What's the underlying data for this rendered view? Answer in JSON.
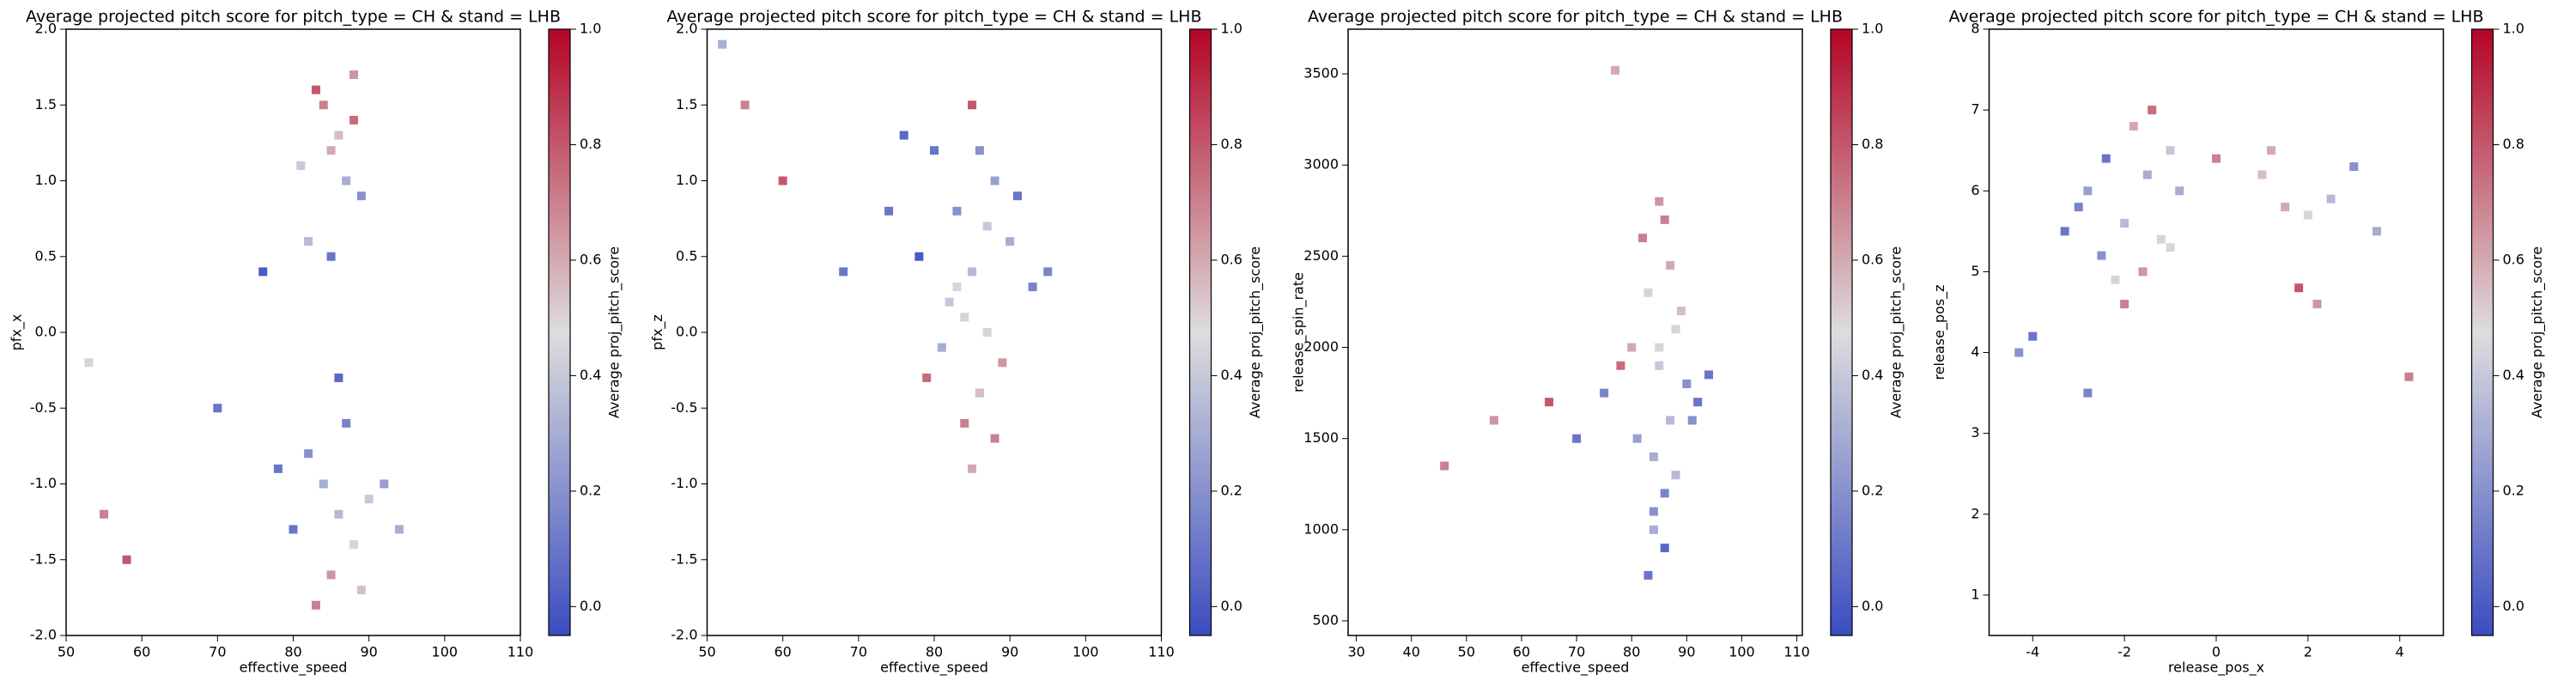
{
  "chart_data": [
    {
      "type": "scatter",
      "title": "Average projected pitch score for pitch_type = CH & stand = LHB",
      "x_label": "effective_speed",
      "y_label": "pfx_x",
      "colorbar_label": "Average proj_pitch_score",
      "xlim": [
        50,
        110
      ],
      "xticks": [
        50,
        60,
        70,
        80,
        90,
        100,
        110
      ],
      "ylim": [
        -2,
        2
      ],
      "yticks": [
        {
          "value": -2,
          "label": "-2.0"
        },
        {
          "value": -1.5,
          "label": "-1.5"
        },
        {
          "value": -1,
          "label": "-1.0"
        },
        {
          "value": -0.5,
          "label": "-0.5"
        },
        {
          "value": 0,
          "label": "0.0"
        },
        {
          "value": 0.5,
          "label": "0.5"
        },
        {
          "value": 1,
          "label": "1.0"
        },
        {
          "value": 1.5,
          "label": "1.5"
        },
        {
          "value": 2,
          "label": "2.0"
        }
      ],
      "clim": [
        -0.05,
        1
      ],
      "cticks": [
        {
          "value": 0,
          "label": "0.0"
        },
        {
          "value": 0.2,
          "label": "0.2"
        },
        {
          "value": 0.4,
          "label": "0.4"
        },
        {
          "value": 0.6,
          "label": "0.6"
        },
        {
          "value": 0.8,
          "label": "0.8"
        },
        {
          "value": 1,
          "label": "1.0"
        }
      ],
      "cmap_colors": [
        "#3b4cc0",
        "#dddddd",
        "#b40426"
      ],
      "x": [
        86,
        84,
        88,
        82,
        90,
        85,
        87,
        80,
        92,
        83,
        89,
        86,
        78,
        94,
        85,
        88,
        81,
        84,
        87,
        86,
        83,
        89,
        85,
        88,
        82,
        55,
        53,
        58,
        70,
        76
      ],
      "y": [
        -1.2,
        -1.0,
        -1.4,
        -0.8,
        -1.1,
        -1.6,
        -0.6,
        -1.3,
        -1.0,
        -1.8,
        -1.7,
        -0.3,
        -0.9,
        -1.3,
        1.2,
        1.4,
        1.1,
        1.5,
        1.0,
        1.3,
        1.6,
        0.9,
        0.5,
        1.7,
        0.6,
        -1.2,
        -0.2,
        -1.5,
        -0.5,
        0.4
      ],
      "c": [
        0.35,
        0.3,
        0.45,
        0.2,
        0.4,
        0.65,
        0.15,
        0.1,
        0.25,
        0.7,
        0.55,
        0.05,
        0.1,
        0.3,
        0.6,
        0.75,
        0.4,
        0.7,
        0.3,
        0.55,
        0.8,
        0.2,
        0.1,
        0.65,
        0.35,
        0.7,
        0.5,
        0.8,
        0.1,
        0.0
      ]
    },
    {
      "type": "scatter",
      "title": "Average projected pitch score for pitch_type = CH & stand = LHB",
      "x_label": "effective_speed",
      "y_label": "pfx_z",
      "colorbar_label": "Average proj_pitch_score",
      "xlim": [
        50,
        110
      ],
      "xticks": [
        50,
        60,
        70,
        80,
        90,
        100,
        110
      ],
      "ylim": [
        -2,
        2
      ],
      "yticks": [
        {
          "value": -2,
          "label": "-2.0"
        },
        {
          "value": -1.5,
          "label": "-1.5"
        },
        {
          "value": -1,
          "label": "-1.0"
        },
        {
          "value": -0.5,
          "label": "-0.5"
        },
        {
          "value": 0,
          "label": "0.0"
        },
        {
          "value": 0.5,
          "label": "0.5"
        },
        {
          "value": 1,
          "label": "1.0"
        },
        {
          "value": 1.5,
          "label": "1.5"
        },
        {
          "value": 2,
          "label": "2.0"
        }
      ],
      "clim": [
        -0.05,
        1
      ],
      "cticks": [
        {
          "value": 0,
          "label": "0.0"
        },
        {
          "value": 0.2,
          "label": "0.2"
        },
        {
          "value": 0.4,
          "label": "0.4"
        },
        {
          "value": 0.6,
          "label": "0.6"
        },
        {
          "value": 0.8,
          "label": "0.8"
        },
        {
          "value": 1,
          "label": "1.0"
        }
      ],
      "cmap_colors": [
        "#3b4cc0",
        "#dddddd",
        "#b40426"
      ],
      "x": [
        85,
        83,
        87,
        80,
        90,
        86,
        82,
        88,
        78,
        93,
        84,
        89,
        76,
        85,
        81,
        87,
        91,
        84,
        79,
        86,
        83,
        88,
        74,
        95,
        85,
        52,
        55,
        60,
        68,
        86
      ],
      "y": [
        0.4,
        0.8,
        0.0,
        1.2,
        0.6,
        -0.4,
        0.2,
        1.0,
        0.5,
        0.3,
        -0.6,
        -0.2,
        1.3,
        1.5,
        -0.1,
        0.7,
        0.9,
        0.1,
        -0.3,
        1.2,
        0.3,
        -0.7,
        0.8,
        0.4,
        -0.9,
        1.9,
        1.5,
        1.0,
        0.4,
        -0.4
      ],
      "c": [
        0.35,
        0.2,
        0.45,
        0.1,
        0.3,
        0.6,
        0.4,
        0.25,
        0.0,
        0.15,
        0.7,
        0.65,
        0.05,
        0.8,
        0.3,
        0.4,
        0.1,
        0.5,
        0.75,
        0.2,
        0.45,
        0.7,
        0.1,
        0.15,
        0.6,
        0.3,
        0.7,
        0.8,
        0.1,
        0.55
      ]
    },
    {
      "type": "scatter",
      "title": "Average projected pitch score for pitch_type = CH & stand = LHB",
      "x_label": "effective_speed",
      "y_label": "release_spin_rate",
      "colorbar_label": "Average proj_pitch_score",
      "xlim": [
        28.5,
        111
      ],
      "xticks": [
        30,
        40,
        50,
        60,
        70,
        80,
        90,
        100,
        110
      ],
      "ylim": [
        420,
        3745
      ],
      "yticks": [
        500,
        1000,
        1500,
        2000,
        2500,
        3000,
        3500
      ],
      "clim": [
        -0.05,
        1
      ],
      "cticks": [
        {
          "value": 0,
          "label": "0.0"
        },
        {
          "value": 0.2,
          "label": "0.2"
        },
        {
          "value": 0.4,
          "label": "0.4"
        },
        {
          "value": 0.6,
          "label": "0.6"
        },
        {
          "value": 0.8,
          "label": "0.8"
        },
        {
          "value": 1,
          "label": "1.0"
        }
      ],
      "cmap_colors": [
        "#3b4cc0",
        "#dddddd",
        "#b40426"
      ],
      "x": [
        85,
        83,
        87,
        80,
        90,
        86,
        82,
        88,
        84,
        92,
        85,
        81,
        89,
        86,
        78,
        84,
        87,
        83,
        91,
        85,
        88,
        86,
        75,
        94,
        84,
        46,
        55,
        65,
        70,
        77
      ],
      "y": [
        1900,
        2300,
        1600,
        2000,
        1800,
        1200,
        2600,
        2100,
        1400,
        1700,
        2800,
        1500,
        2200,
        900,
        1900,
        1000,
        2450,
        750,
        1600,
        2000,
        1300,
        2700,
        1750,
        1850,
        1100,
        1350,
        1600,
        1700,
        1500,
        3520
      ],
      "c": [
        0.4,
        0.5,
        0.35,
        0.6,
        0.2,
        0.15,
        0.7,
        0.45,
        0.3,
        0.1,
        0.65,
        0.25,
        0.55,
        0.05,
        0.75,
        0.3,
        0.6,
        0.1,
        0.2,
        0.45,
        0.35,
        0.7,
        0.15,
        0.1,
        0.2,
        0.7,
        0.65,
        0.8,
        0.1,
        0.6
      ]
    },
    {
      "type": "scatter",
      "title": "Average projected pitch score for pitch_type = CH & stand = LHB",
      "x_label": "release_pos_x",
      "y_label": "release_pos_z",
      "colorbar_label": "Average proj_pitch_score",
      "xlim": [
        -4.95,
        4.95
      ],
      "xticks": [
        -4,
        -2,
        0,
        2,
        4
      ],
      "ylim": [
        0.5,
        8
      ],
      "yticks": [
        1,
        2,
        3,
        4,
        5,
        6,
        7,
        8
      ],
      "clim": [
        -0.05,
        1
      ],
      "cticks": [
        {
          "value": 0,
          "label": "0.0"
        },
        {
          "value": 0.2,
          "label": "0.2"
        },
        {
          "value": 0.4,
          "label": "0.4"
        },
        {
          "value": 0.6,
          "label": "0.6"
        },
        {
          "value": 0.8,
          "label": "0.8"
        },
        {
          "value": 1,
          "label": "1.0"
        }
      ],
      "cmap_colors": [
        "#3b4cc0",
        "#dddddd",
        "#b40426"
      ],
      "x": [
        -2,
        -1.5,
        -2.5,
        -3,
        -1,
        -2.2,
        -1.8,
        -2.8,
        -1.2,
        -3.3,
        -2,
        -1.6,
        -0.8,
        -2.4,
        -1.4,
        0,
        1,
        1.5,
        2,
        2.5,
        3,
        1.8,
        2.2,
        1.2,
        3.5,
        -4.3,
        -4,
        -2.8,
        4.2,
        -1
      ],
      "y": [
        5.6,
        6.2,
        5.2,
        5.8,
        6.5,
        4.9,
        6.8,
        6.0,
        5.4,
        5.5,
        4.6,
        5.0,
        6.0,
        6.4,
        7.0,
        6.4,
        6.2,
        5.8,
        5.7,
        5.9,
        6.3,
        4.8,
        4.6,
        6.5,
        5.5,
        4.0,
        4.2,
        3.5,
        3.7,
        5.3
      ],
      "c": [
        0.35,
        0.3,
        0.2,
        0.15,
        0.4,
        0.45,
        0.6,
        0.25,
        0.5,
        0.1,
        0.7,
        0.65,
        0.3,
        0.1,
        0.75,
        0.7,
        0.55,
        0.6,
        0.5,
        0.35,
        0.2,
        0.8,
        0.65,
        0.6,
        0.3,
        0.2,
        0.1,
        0.15,
        0.7,
        0.45
      ]
    }
  ]
}
